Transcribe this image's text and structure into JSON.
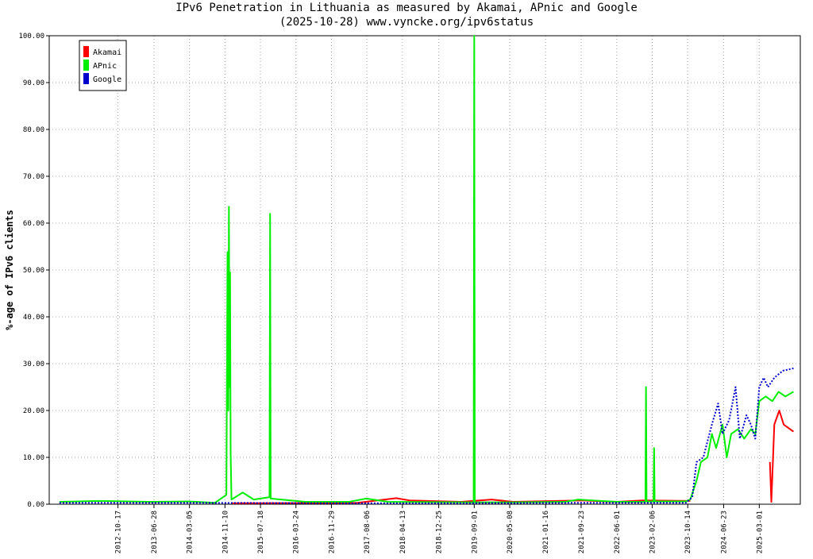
{
  "chart_data": {
    "type": "line",
    "title": "IPv6 Penetration in Lithuania as measured by Akamai, APnic and Google",
    "subtitle": "(2025-10-28) www.vyncke.org/ipv6status",
    "y_label": "%-age of IPv6 clients",
    "xlim": [
      "2011-06-21",
      "2025-12-15"
    ],
    "xticks": [
      "2012-10-17",
      "2013-06-28",
      "2014-03-05",
      "2014-11-10",
      "2015-07-18",
      "2016-03-24",
      "2016-11-29",
      "2017-08-06",
      "2018-04-13",
      "2018-12-25",
      "2019-09-01",
      "2020-05-08",
      "2021-01-16",
      "2021-09-23",
      "2022-06-01",
      "2023-02-06",
      "2023-10-14",
      "2024-06-23",
      "2025-03-01"
    ],
    "ylim": [
      0,
      100
    ],
    "yticks": [
      {
        "value": 0,
        "label": "0.00"
      },
      {
        "value": 10,
        "label": "10.00"
      },
      {
        "value": 20,
        "label": "20.00"
      },
      {
        "value": 30,
        "label": "30.00"
      },
      {
        "value": 40,
        "label": "40.00"
      },
      {
        "value": 50,
        "label": "50.00"
      },
      {
        "value": 60,
        "label": "60.00"
      },
      {
        "value": 70,
        "label": "70.00"
      },
      {
        "value": 80,
        "label": "80.00"
      },
      {
        "value": 90,
        "label": "90.00"
      },
      {
        "value": 100,
        "label": "100.00"
      }
    ],
    "grid": true,
    "legend": "upper left",
    "series": [
      {
        "name": "Akamai",
        "color": "#ff0000",
        "line_style": "solid",
        "x": [
          "2015-01-01",
          "2017-06-01",
          "2018-03-01",
          "2018-06-01",
          "2019-06-01",
          "2020-01-01",
          "2020-06-01",
          "2021-10-01",
          "2022-06-01",
          "2022-12-01",
          "2023-11-01",
          "2024-06-01",
          "2025-05-15",
          "2025-05-25",
          "2025-06-15",
          "2025-07-20",
          "2025-08-20",
          "2025-10-28"
        ],
        "values": [
          0.2,
          0.3,
          1.3,
          0.8,
          0.5,
          1.0,
          0.5,
          0.8,
          0.5,
          0.8,
          0.7,
          null,
          9,
          0.5,
          17,
          20,
          17,
          15.5
        ]
      },
      {
        "name": "APnic",
        "color": "#00ee00",
        "line_style": "solid",
        "x": [
          "2011-09-01",
          "2012-06-01",
          "2013-06-01",
          "2014-03-01",
          "2014-09-01",
          "2014-11-20",
          "2014-11-28",
          "2014-12-04",
          "2014-12-08",
          "2014-12-12",
          "2014-12-16",
          "2014-12-20",
          "2014-12-26",
          "2015-03-15",
          "2015-06-01",
          "2015-09-20",
          "2015-09-24",
          "2015-09-28",
          "2016-06-01",
          "2017-04-01",
          "2017-08-01",
          "2018-01-01",
          "2019-08-28",
          "2019-09-01",
          "2019-09-05",
          "2020-06-01",
          "2021-06-01",
          "2021-09-01",
          "2022-06-01",
          "2022-12-20",
          "2022-12-24",
          "2022-12-28",
          "2023-02-15",
          "2023-02-19",
          "2023-02-23",
          "2023-10-01",
          "2023-11-01",
          "2023-12-15",
          "2024-01-15",
          "2024-03-01",
          "2024-04-01",
          "2024-05-01",
          "2024-06-15",
          "2024-07-15",
          "2024-08-15",
          "2024-10-01",
          "2024-11-15",
          "2025-01-01",
          "2025-02-01",
          "2025-03-01",
          "2025-04-15",
          "2025-06-01",
          "2025-07-15",
          "2025-09-01",
          "2025-10-28"
        ],
        "values": [
          0.5,
          0.7,
          0.5,
          0.6,
          0.3,
          2.0,
          53.8,
          20,
          63.5,
          25,
          49.5,
          11,
          1,
          2.5,
          1.0,
          1.5,
          62.0,
          1.2,
          0.5,
          0.5,
          1.2,
          0.5,
          0.4,
          100,
          0.4,
          0.4,
          0.5,
          1.0,
          0.5,
          0.5,
          25,
          0.6,
          0.6,
          12,
          0.6,
          0.6,
          1.0,
          5,
          9,
          10,
          15,
          12,
          17,
          10,
          15,
          16,
          14,
          16,
          15,
          22,
          23,
          22,
          24,
          23,
          24
        ]
      },
      {
        "name": "Google",
        "color": "#0000cc",
        "line_style": "dotted",
        "x": [
          "2011-09-01",
          "2014-01-01",
          "2018-01-01",
          "2022-01-01",
          "2023-10-01",
          "2023-11-15",
          "2023-12-15",
          "2024-02-01",
          "2024-04-01",
          "2024-05-15",
          "2024-06-15",
          "2024-08-01",
          "2024-09-15",
          "2024-10-15",
          "2024-12-01",
          "2025-01-01",
          "2025-02-01",
          "2025-03-01",
          "2025-04-01",
          "2025-05-01",
          "2025-06-15",
          "2025-08-15",
          "2025-10-28"
        ],
        "values": [
          0.3,
          0.3,
          0.2,
          0.3,
          0.3,
          1.5,
          9,
          10,
          17,
          21.5,
          15,
          18,
          25,
          14,
          19,
          17,
          14,
          25,
          27,
          25,
          27,
          28.5,
          29
        ]
      }
    ]
  }
}
